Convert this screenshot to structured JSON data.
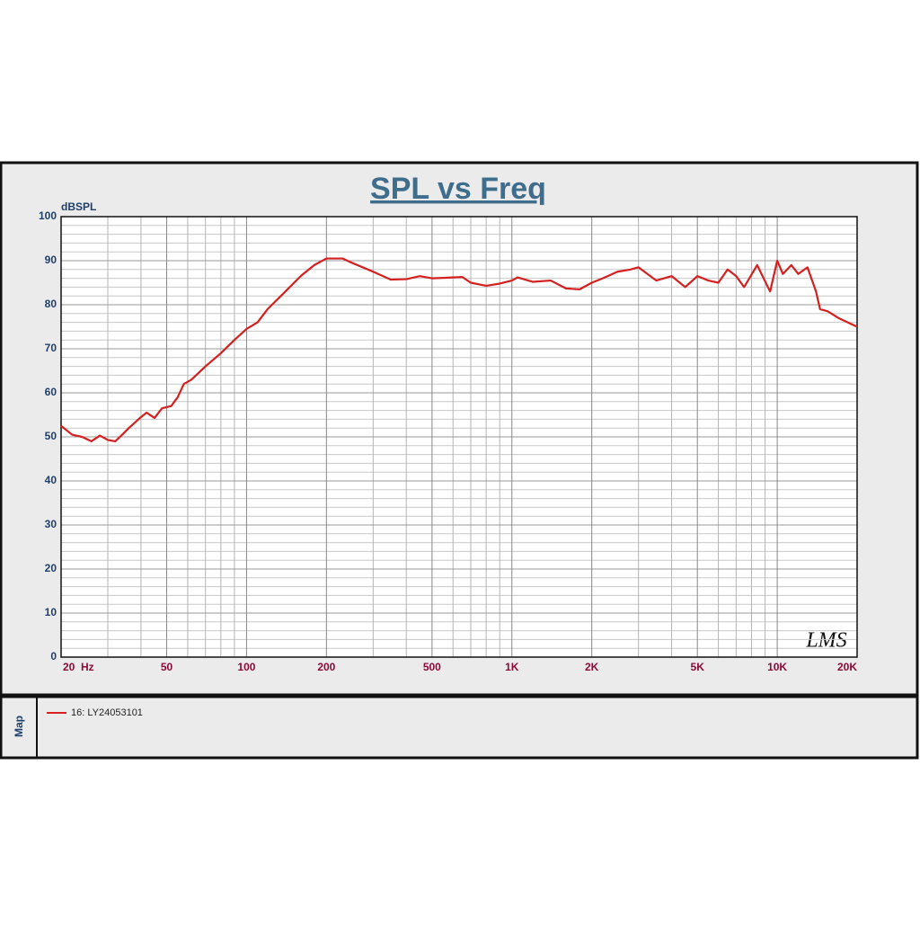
{
  "chart_data": {
    "type": "line",
    "title": "SPL vs Freq",
    "y_label": "dBSPL",
    "xscale": "log",
    "grid": true,
    "xlim": [
      20,
      20000
    ],
    "ylim": [
      0,
      100
    ],
    "xticks": [
      {
        "value": 20,
        "label": "20  Hz"
      },
      50,
      100,
      200,
      500,
      {
        "value": 1000,
        "label": "1K"
      },
      {
        "value": 2000,
        "label": "2K"
      },
      {
        "value": 5000,
        "label": "5K"
      },
      {
        "value": 10000,
        "label": "10K"
      },
      {
        "value": 20000,
        "label": "20K"
      }
    ],
    "xminorticks": [
      30,
      40,
      60,
      70,
      80,
      90,
      300,
      400,
      600,
      700,
      800,
      900,
      3000,
      4000,
      6000,
      7000,
      8000,
      9000
    ],
    "yticks": [
      0,
      10,
      20,
      30,
      40,
      50,
      60,
      70,
      80,
      90,
      100
    ],
    "yminorticks": [
      2,
      4,
      6,
      8,
      12,
      14,
      16,
      18,
      22,
      24,
      26,
      28,
      32,
      34,
      36,
      38,
      42,
      44,
      46,
      48,
      52,
      54,
      56,
      58,
      62,
      64,
      66,
      68,
      72,
      74,
      76,
      78,
      82,
      84,
      86,
      88,
      92,
      94,
      96,
      98
    ],
    "x": [
      20,
      22,
      24,
      26,
      28,
      30,
      32,
      34,
      36,
      40,
      42,
      45,
      48,
      52,
      55,
      58,
      62,
      70,
      80,
      90,
      100,
      110,
      120,
      140,
      160,
      180,
      200,
      230,
      250,
      300,
      350,
      400,
      450,
      500,
      600,
      650,
      700,
      800,
      900,
      1000,
      1050,
      1200,
      1400,
      1600,
      1800,
      2000,
      2200,
      2500,
      2800,
      3000,
      3500,
      4000,
      4500,
      5000,
      5500,
      6000,
      6500,
      7000,
      7500,
      8400,
      9400,
      10000,
      10500,
      11300,
      12000,
      13000,
      14000,
      14500,
      15500,
      17000,
      20000
    ],
    "series": [
      {
        "name": "16: LY24053101",
        "color": "#d42020",
        "values": [
          52.5,
          50.5,
          50,
          49,
          50.3,
          49.3,
          49,
          50.5,
          52,
          54.5,
          55.5,
          54.3,
          56.5,
          57,
          59,
          62,
          63,
          66,
          69,
          72,
          74.5,
          76,
          79,
          83,
          86.5,
          89,
          90.5,
          90.5,
          89.5,
          87.5,
          85.7,
          85.8,
          86.5,
          86,
          86.2,
          86.3,
          85,
          84.3,
          84.8,
          85.5,
          86.2,
          85.2,
          85.5,
          83.7,
          83.5,
          85,
          86,
          87.5,
          88,
          88.5,
          85.5,
          86.5,
          84,
          86.5,
          85.5,
          85,
          88,
          86.5,
          84,
          89,
          83,
          90,
          87,
          89,
          87,
          88.5,
          83,
          79,
          78.5,
          77,
          75
        ]
      }
    ],
    "legend_title": "Map",
    "watermark": "LMS"
  }
}
